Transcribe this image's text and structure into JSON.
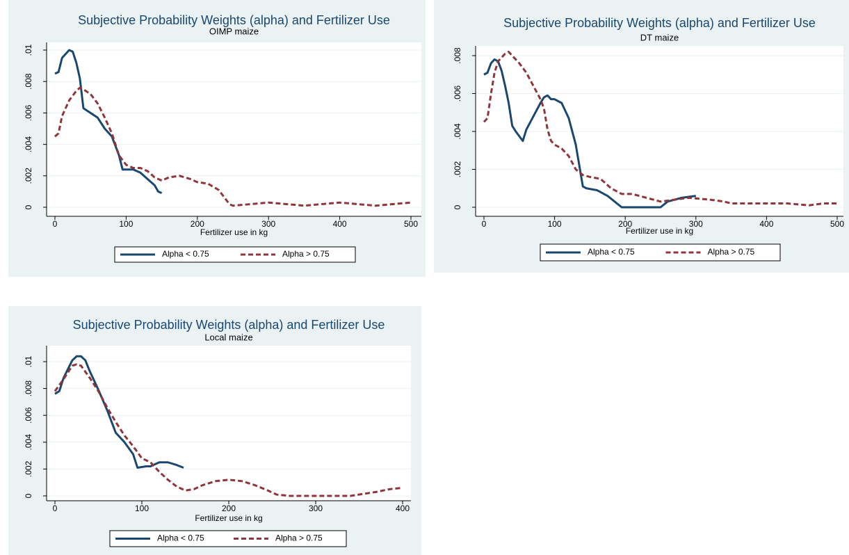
{
  "chart_data": [
    {
      "type": "line",
      "title": "Subjective Probability Weights (alpha)  and Fertilizer Use",
      "subtitle": "OIMP maize",
      "xlabel": "Fertilizer use in kg",
      "xlim": [
        0,
        500
      ],
      "xticks": [
        0,
        100,
        200,
        300,
        400,
        500
      ],
      "ylim": [
        0,
        0.01
      ],
      "yticks": [
        0,
        {
          "value": 0.002,
          "label": ".002"
        },
        {
          "value": 0.004,
          "label": ".004"
        },
        {
          "value": 0.006,
          "label": ".006"
        },
        {
          "value": 0.008,
          "label": ".008"
        },
        {
          "value": 0.01,
          "label": ".01"
        }
      ],
      "grid": true,
      "legend": "bottom",
      "series": [
        {
          "name": "Alpha < 0.75",
          "color": "#1a476f",
          "dashed": false,
          "x": [
            0,
            5,
            10,
            20,
            25,
            30,
            35,
            40,
            50,
            60,
            70,
            80,
            90,
            95,
            100,
            110,
            120,
            130,
            140,
            145,
            150
          ],
          "values": [
            0.0085,
            0.0086,
            0.0095,
            0.01,
            0.0099,
            0.0092,
            0.0082,
            0.0063,
            0.006,
            0.0057,
            0.005,
            0.0045,
            0.0033,
            0.0024,
            0.0024,
            0.0024,
            0.0022,
            0.0018,
            0.0014,
            0.001,
            0.0009
          ]
        },
        {
          "name": "Alpha > 0.75",
          "color": "#90353b",
          "dashed": true,
          "x": [
            0,
            5,
            10,
            20,
            30,
            35,
            40,
            50,
            60,
            70,
            80,
            90,
            100,
            110,
            120,
            130,
            140,
            150,
            160,
            175,
            190,
            200,
            215,
            230,
            245,
            250,
            275,
            300,
            325,
            350,
            375,
            400,
            425,
            450,
            475,
            500
          ],
          "values": [
            0.0045,
            0.0047,
            0.0058,
            0.0068,
            0.0074,
            0.0076,
            0.0075,
            0.0072,
            0.0066,
            0.0057,
            0.0047,
            0.0033,
            0.0027,
            0.0025,
            0.0025,
            0.0023,
            0.0019,
            0.0017,
            0.0019,
            0.002,
            0.0018,
            0.0016,
            0.0015,
            0.0011,
            0.0002,
            0.0001,
            0.0002,
            0.0003,
            0.0002,
            0.0001,
            0.0002,
            0.0003,
            0.0002,
            0.0001,
            0.0002,
            0.0003
          ]
        }
      ]
    },
    {
      "type": "line",
      "title": "Subjective Probability Weights (alpha) and Fertilizer Use",
      "subtitle": "DT maize",
      "xlabel": "Fertilizer use in kg",
      "xlim": [
        0,
        500
      ],
      "xticks": [
        0,
        100,
        200,
        300,
        400,
        500
      ],
      "ylim": [
        0,
        0.008
      ],
      "yticks": [
        0,
        {
          "value": 0.002,
          "label": ".002"
        },
        {
          "value": 0.004,
          "label": ".004"
        },
        {
          "value": 0.006,
          "label": ".006"
        },
        {
          "value": 0.008,
          "label": ".008"
        }
      ],
      "grid": true,
      "legend": "bottom",
      "series": [
        {
          "name": "Alpha < 0.75",
          "color": "#1a476f",
          "dashed": false,
          "x": [
            0,
            5,
            10,
            15,
            20,
            25,
            30,
            35,
            40,
            45,
            55,
            60,
            70,
            80,
            85,
            90,
            95,
            100,
            110,
            120,
            130,
            140,
            145,
            160,
            175,
            195,
            250,
            260,
            280,
            300
          ],
          "values": [
            0.007,
            0.0071,
            0.0076,
            0.0078,
            0.0077,
            0.0072,
            0.0064,
            0.0055,
            0.0043,
            0.004,
            0.0035,
            0.0041,
            0.0048,
            0.0055,
            0.0058,
            0.0059,
            0.0057,
            0.0057,
            0.0055,
            0.0047,
            0.0033,
            0.0011,
            0.001,
            0.0009,
            0.0006,
            0,
            0,
            0.0003,
            0.0005,
            0.0006
          ]
        },
        {
          "name": "Alpha > 0.75",
          "color": "#90353b",
          "dashed": true,
          "x": [
            0,
            5,
            10,
            15,
            20,
            30,
            35,
            40,
            50,
            60,
            70,
            80,
            85,
            90,
            95,
            100,
            110,
            120,
            130,
            140,
            150,
            165,
            180,
            195,
            210,
            230,
            250,
            270,
            290,
            320,
            340,
            350,
            380,
            400,
            430,
            460,
            480,
            500
          ],
          "values": [
            0.0045,
            0.0047,
            0.006,
            0.0071,
            0.0077,
            0.0081,
            0.0082,
            0.008,
            0.0076,
            0.0071,
            0.0064,
            0.0057,
            0.0052,
            0.0041,
            0.0035,
            0.0033,
            0.0031,
            0.0027,
            0.002,
            0.0017,
            0.0016,
            0.0015,
            0.001,
            0.0007,
            0.0007,
            0.0005,
            0.0003,
            0.0004,
            0.0005,
            0.0004,
            0.0003,
            0.0002,
            0.0002,
            0.0002,
            0.0002,
            0.0001,
            0.0002,
            0.0002
          ]
        }
      ]
    },
    {
      "type": "line",
      "title": "Subjective Probability Weights (alpha) and Fertilizer Use",
      "subtitle": "Local maize",
      "xlabel": "Fertilizer use in kg",
      "xlim": [
        0,
        400
      ],
      "xticks": [
        0,
        100,
        200,
        300,
        400
      ],
      "ylim": [
        0,
        0.01
      ],
      "yticks": [
        0,
        {
          "value": 0.002,
          "label": ".002"
        },
        {
          "value": 0.004,
          "label": ".004"
        },
        {
          "value": 0.006,
          "label": ".006"
        },
        {
          "value": 0.008,
          "label": ".008"
        },
        {
          "value": 0.01,
          "label": ".01"
        }
      ],
      "grid": true,
      "legend": "bottom",
      "series": [
        {
          "name": "Alpha < 0.75",
          "color": "#1a476f",
          "dashed": false,
          "x": [
            0,
            5,
            10,
            20,
            25,
            30,
            35,
            40,
            45,
            50,
            60,
            70,
            80,
            90,
            95,
            105,
            110,
            120,
            130,
            140,
            148
          ],
          "values": [
            0.0076,
            0.0078,
            0.0088,
            0.0101,
            0.0104,
            0.0104,
            0.0101,
            0.0093,
            0.0086,
            0.0079,
            0.0064,
            0.0047,
            0.004,
            0.0031,
            0.0021,
            0.0022,
            0.0022,
            0.0025,
            0.0025,
            0.0023,
            0.0021
          ]
        },
        {
          "name": "Alpha > 0.75",
          "color": "#90353b",
          "dashed": true,
          "x": [
            0,
            10,
            20,
            25,
            30,
            40,
            50,
            60,
            70,
            80,
            90,
            100,
            110,
            120,
            130,
            140,
            150,
            160,
            170,
            185,
            200,
            215,
            230,
            245,
            255,
            270,
            300,
            340,
            350,
            370,
            385,
            400
          ],
          "values": [
            0.0078,
            0.0087,
            0.0097,
            0.0098,
            0.0097,
            0.0088,
            0.0078,
            0.0066,
            0.0055,
            0.0045,
            0.0037,
            0.0028,
            0.0025,
            0.0018,
            0.0012,
            0.0007,
            0.0004,
            0.0005,
            0.0008,
            0.0011,
            0.0012,
            0.0011,
            0.0008,
            0.0004,
            0.0001,
            0,
            0,
            0,
            0.0001,
            0.0003,
            0.0005,
            0.0006
          ]
        }
      ]
    }
  ]
}
